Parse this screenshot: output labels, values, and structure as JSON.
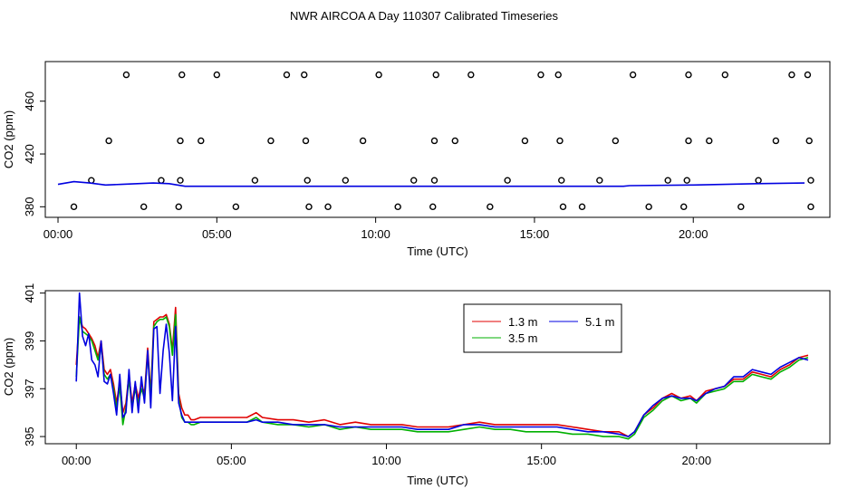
{
  "title": "NWR AIRCOA A  Day 110307  Calibrated Timeseries",
  "colors": {
    "red": "#e00000",
    "green": "#00b000",
    "blue": "#0000e0",
    "axis": "#000000"
  },
  "chart_data": [
    {
      "type": "scatter+line",
      "xlabel": "Time (UTC)",
      "ylabel": "CO2 (ppm)",
      "xlim": [
        -0.4,
        24.3
      ],
      "ylim": [
        372,
        490
      ],
      "xticks": [
        0,
        5,
        10,
        15,
        20
      ],
      "xtick_labels": [
        "00:00",
        "05:00",
        "10:00",
        "15:00",
        "20:00"
      ],
      "yticks": [
        380,
        420,
        460
      ],
      "ytick_labels": [
        "380",
        "420",
        "460"
      ],
      "points": [
        [
          0.5,
          380
        ],
        [
          1.05,
          400
        ],
        [
          1.6,
          430
        ],
        [
          2.15,
          480
        ],
        [
          2.7,
          380
        ],
        [
          3.25,
          400
        ],
        [
          3.8,
          380
        ],
        [
          3.85,
          400
        ],
        [
          3.85,
          430
        ],
        [
          3.9,
          480
        ],
        [
          4.5,
          430
        ],
        [
          5.0,
          480
        ],
        [
          5.6,
          380
        ],
        [
          6.2,
          400
        ],
        [
          6.7,
          430
        ],
        [
          7.2,
          480
        ],
        [
          7.75,
          480
        ],
        [
          7.8,
          430
        ],
        [
          7.85,
          400
        ],
        [
          7.9,
          380
        ],
        [
          8.5,
          380
        ],
        [
          9.05,
          400
        ],
        [
          9.6,
          430
        ],
        [
          10.1,
          480
        ],
        [
          10.7,
          380
        ],
        [
          11.2,
          400
        ],
        [
          11.8,
          380
        ],
        [
          11.85,
          400
        ],
        [
          11.85,
          430
        ],
        [
          11.9,
          480
        ],
        [
          12.5,
          430
        ],
        [
          13.0,
          480
        ],
        [
          13.6,
          380
        ],
        [
          14.15,
          400
        ],
        [
          14.7,
          430
        ],
        [
          15.2,
          480
        ],
        [
          15.75,
          480
        ],
        [
          15.8,
          430
        ],
        [
          15.85,
          400
        ],
        [
          15.9,
          380
        ],
        [
          16.5,
          380
        ],
        [
          17.05,
          400
        ],
        [
          17.55,
          430
        ],
        [
          18.1,
          480
        ],
        [
          18.6,
          380
        ],
        [
          19.2,
          400
        ],
        [
          19.7,
          380
        ],
        [
          19.8,
          400
        ],
        [
          19.85,
          430
        ],
        [
          19.85,
          480
        ],
        [
          20.5,
          430
        ],
        [
          21.0,
          480
        ],
        [
          21.5,
          380
        ],
        [
          22.05,
          400
        ],
        [
          22.6,
          430
        ],
        [
          23.1,
          480
        ],
        [
          23.6,
          480
        ],
        [
          23.65,
          430
        ],
        [
          23.7,
          400
        ],
        [
          23.7,
          380
        ]
      ],
      "series": [
        {
          "name": "5.1 m",
          "color": "blue",
          "x": [
            0,
            0.5,
            1,
            1.5,
            2,
            2.5,
            3,
            3.5,
            4,
            6,
            8,
            10,
            12,
            14,
            16,
            17.8,
            18,
            20,
            22,
            23.5
          ],
          "values": [
            397,
            399,
            398,
            396.5,
            397,
            397.5,
            398,
            397.5,
            395.5,
            395.5,
            395.5,
            395.5,
            395.5,
            395.5,
            395.5,
            395.5,
            396,
            396.5,
            397.5,
            398
          ]
        }
      ]
    },
    {
      "type": "line",
      "xlabel": "Time (UTC)",
      "ylabel": "CO2 (ppm)",
      "xlim": [
        -1,
        24.3
      ],
      "ylim": [
        394.7,
        401.1
      ],
      "xticks": [
        0,
        5,
        10,
        15,
        20
      ],
      "xtick_labels": [
        "00:00",
        "05:00",
        "10:00",
        "15:00",
        "20:00"
      ],
      "yticks": [
        395,
        397,
        399,
        401
      ],
      "ytick_labels": [
        "395",
        "397",
        "399",
        "401"
      ],
      "legend": {
        "position": "top-center",
        "entries": [
          {
            "label": "1.3 m",
            "color": "red"
          },
          {
            "label": "5.1 m",
            "color": "blue"
          },
          {
            "label": "3.5 m",
            "color": "green"
          }
        ]
      },
      "series": [
        {
          "name": "1.3 m",
          "color": "red",
          "x": [
            0,
            0.1,
            0.2,
            0.3,
            0.4,
            0.5,
            0.6,
            0.7,
            0.8,
            0.9,
            1.0,
            1.1,
            1.2,
            1.3,
            1.4,
            1.5,
            1.6,
            1.7,
            1.8,
            1.9,
            2.0,
            2.1,
            2.2,
            2.3,
            2.4,
            2.5,
            2.6,
            2.7,
            2.8,
            2.9,
            3.0,
            3.1,
            3.2,
            3.3,
            3.4,
            3.5,
            3.6,
            3.7,
            3.8,
            4,
            4.5,
            5,
            5.5,
            5.8,
            6,
            6.5,
            7,
            7.5,
            8,
            8.5,
            9,
            9.5,
            10,
            10.5,
            11,
            11.5,
            12,
            12.5,
            13,
            13.5,
            14,
            14.5,
            15,
            15.5,
            16,
            16.5,
            17,
            17.5,
            17.8,
            18,
            18.3,
            18.6,
            18.9,
            19.2,
            19.5,
            19.8,
            20,
            20.3,
            20.6,
            20.9,
            21.2,
            21.5,
            21.8,
            22.1,
            22.4,
            22.7,
            23,
            23.3,
            23.6
          ],
          "values": [
            398,
            400,
            399.6,
            399.5,
            399.3,
            399.1,
            398.8,
            398.3,
            399,
            397.8,
            397.6,
            397.8,
            397.2,
            396.4,
            397.3,
            396,
            396.4,
            397.6,
            396.4,
            397.2,
            396.6,
            397.2,
            396.8,
            398.7,
            396.8,
            399.8,
            399.9,
            400,
            400,
            400.1,
            399.7,
            398.6,
            400.4,
            396.8,
            396.2,
            395.9,
            395.9,
            395.7,
            395.7,
            395.8,
            395.8,
            395.8,
            395.8,
            396,
            395.8,
            395.7,
            395.7,
            395.6,
            395.7,
            395.5,
            395.6,
            395.5,
            395.5,
            395.5,
            395.4,
            395.4,
            395.4,
            395.5,
            395.6,
            395.5,
            395.5,
            395.5,
            395.5,
            395.5,
            395.4,
            395.3,
            395.2,
            395.2,
            395.0,
            395.2,
            395.9,
            396.2,
            396.6,
            396.8,
            396.6,
            396.7,
            396.5,
            396.9,
            397.0,
            397.1,
            397.4,
            397.4,
            397.7,
            397.6,
            397.5,
            397.8,
            398.0,
            398.3,
            398.4
          ]
        },
        {
          "name": "3.5 m",
          "color": "green",
          "x": [
            0,
            0.1,
            0.2,
            0.3,
            0.4,
            0.5,
            0.6,
            0.7,
            0.8,
            0.9,
            1.0,
            1.1,
            1.2,
            1.3,
            1.4,
            1.5,
            1.6,
            1.7,
            1.8,
            1.9,
            2.0,
            2.1,
            2.2,
            2.3,
            2.4,
            2.5,
            2.6,
            2.7,
            2.8,
            2.9,
            3.0,
            3.1,
            3.2,
            3.3,
            3.4,
            3.5,
            3.6,
            3.7,
            3.8,
            4,
            4.5,
            5,
            5.5,
            5.8,
            6,
            6.5,
            7,
            7.5,
            8,
            8.5,
            9,
            9.5,
            10,
            10.5,
            11,
            11.5,
            12,
            12.5,
            13,
            13.5,
            14,
            14.5,
            15,
            15.5,
            16,
            16.5,
            17,
            17.5,
            17.8,
            18,
            18.3,
            18.6,
            18.9,
            19.2,
            19.5,
            19.8,
            20,
            20.3,
            20.6,
            20.9,
            21.2,
            21.5,
            21.8,
            22.1,
            22.4,
            22.7,
            23,
            23.3,
            23.6
          ],
          "values": [
            397.5,
            400,
            399.4,
            399.3,
            399.2,
            399,
            398.6,
            398.2,
            398.8,
            397.6,
            397.4,
            397.6,
            397.0,
            396.2,
            397.1,
            395.5,
            396.2,
            397.4,
            396.2,
            397.0,
            396.4,
            397.0,
            396.6,
            398.5,
            396.6,
            399.6,
            399.8,
            399.9,
            399.9,
            400.0,
            399.6,
            398.4,
            400.1,
            396.6,
            395.8,
            395.6,
            395.6,
            395.5,
            395.5,
            395.6,
            395.6,
            395.6,
            395.6,
            395.8,
            395.6,
            395.5,
            395.5,
            395.4,
            395.5,
            395.3,
            395.4,
            395.3,
            395.3,
            395.3,
            395.2,
            395.2,
            395.2,
            395.3,
            395.4,
            395.3,
            395.3,
            395.2,
            395.2,
            395.2,
            395.1,
            395.1,
            395.0,
            395.0,
            394.9,
            395.1,
            395.8,
            396.1,
            396.5,
            396.7,
            396.5,
            396.6,
            396.4,
            396.8,
            396.9,
            397.0,
            397.3,
            397.3,
            397.6,
            397.5,
            397.4,
            397.7,
            397.9,
            398.2,
            398.3
          ]
        },
        {
          "name": "5.1 m",
          "color": "blue",
          "x": [
            0,
            0.1,
            0.2,
            0.3,
            0.4,
            0.5,
            0.6,
            0.7,
            0.8,
            0.9,
            1.0,
            1.1,
            1.2,
            1.3,
            1.4,
            1.5,
            1.6,
            1.7,
            1.8,
            1.9,
            2.0,
            2.1,
            2.2,
            2.3,
            2.4,
            2.5,
            2.6,
            2.7,
            2.8,
            2.9,
            3.0,
            3.1,
            3.2,
            3.3,
            3.4,
            3.5,
            3.6,
            3.7,
            3.8,
            4,
            4.5,
            5,
            5.5,
            5.8,
            6,
            6.5,
            7,
            7.5,
            8,
            8.5,
            9,
            9.5,
            10,
            10.5,
            11,
            11.5,
            12,
            12.5,
            13,
            13.5,
            14,
            14.5,
            15,
            15.5,
            16,
            16.5,
            17,
            17.5,
            17.8,
            18,
            18.3,
            18.6,
            18.9,
            19.2,
            19.5,
            19.8,
            20,
            20.3,
            20.6,
            20.9,
            21.2,
            21.5,
            21.8,
            22.1,
            22.4,
            22.7,
            23,
            23.3,
            23.6
          ],
          "values": [
            397.3,
            401.0,
            399.2,
            398.8,
            399.3,
            398.2,
            398.0,
            397.5,
            399.0,
            397.3,
            397.2,
            397.6,
            396.8,
            395.9,
            397.6,
            395.8,
            396.0,
            397.8,
            396.0,
            397.3,
            396.0,
            397.5,
            396.4,
            398.6,
            396.2,
            399.5,
            399.6,
            396.8,
            398.6,
            399.7,
            398.5,
            396.5,
            399.6,
            396.4,
            395.9,
            395.6,
            395.6,
            395.6,
            395.6,
            395.6,
            395.6,
            395.6,
            395.6,
            395.7,
            395.6,
            395.6,
            395.5,
            395.5,
            395.5,
            395.4,
            395.4,
            395.4,
            395.4,
            395.4,
            395.3,
            395.3,
            395.3,
            395.5,
            395.5,
            395.4,
            395.4,
            395.4,
            395.4,
            395.4,
            395.3,
            395.2,
            395.2,
            395.1,
            395.0,
            395.2,
            395.9,
            396.3,
            396.6,
            396.7,
            396.6,
            396.6,
            396.5,
            396.8,
            397.0,
            397.1,
            397.5,
            397.5,
            397.8,
            397.7,
            397.6,
            397.9,
            398.1,
            398.3,
            398.2
          ]
        }
      ]
    }
  ]
}
